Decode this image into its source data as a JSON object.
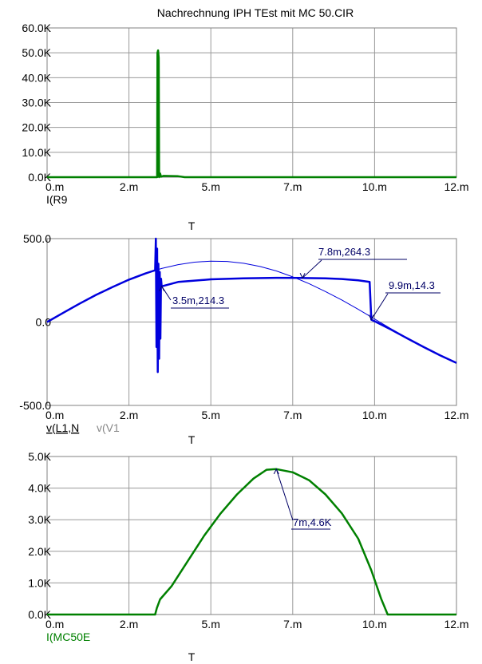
{
  "chart_data": [
    {
      "type": "line",
      "title": "Nachrechnung IPH TEst mit MC 50.CIR",
      "xlabel": "T",
      "x_ticks": [
        "0.m",
        "2.m",
        "5.m",
        "7.m",
        "10.m",
        "12.m"
      ],
      "x_tick_values": [
        0,
        2.5,
        5,
        7.5,
        10,
        12.5
      ],
      "xlim": [
        0,
        12.5
      ],
      "y_ticks": [
        "0.0K",
        "10.0K",
        "20.0K",
        "30.0K",
        "40.0K",
        "50.0K",
        "60.0K"
      ],
      "y_tick_values": [
        0,
        10000,
        20000,
        30000,
        40000,
        50000,
        60000
      ],
      "ylim": [
        0,
        60000
      ],
      "grid": true,
      "legend": [
        {
          "label": "I(R9",
          "color": "#000000",
          "underline": false
        }
      ],
      "series": [
        {
          "name": "I(R9",
          "color": "#008000",
          "points": [
            [
              0,
              0
            ],
            [
              3.3,
              0
            ],
            [
              3.36,
              0
            ],
            [
              3.37,
              50000
            ],
            [
              3.39,
              51000
            ],
            [
              3.41,
              48000
            ],
            [
              3.42,
              0
            ],
            [
              3.45,
              1500
            ],
            [
              3.48,
              200
            ],
            [
              3.55,
              500
            ],
            [
              4.0,
              400
            ],
            [
              4.2,
              0
            ],
            [
              12.5,
              0
            ]
          ]
        }
      ],
      "annotations": []
    },
    {
      "type": "line",
      "title": "",
      "xlabel": "T",
      "x_ticks": [
        "0.m",
        "2.m",
        "5.m",
        "7.m",
        "10.m",
        "12.m"
      ],
      "x_tick_values": [
        0,
        2.5,
        5,
        7.5,
        10,
        12.5
      ],
      "xlim": [
        0,
        12.5
      ],
      "y_ticks": [
        "-500.0",
        "0.0",
        "500.0"
      ],
      "y_tick_values": [
        -500,
        0,
        500
      ],
      "ylim": [
        -500,
        500
      ],
      "grid": true,
      "legend": [
        {
          "label": "v(L1,N",
          "color": "#000000",
          "underline": true
        },
        {
          "label": "v(V1",
          "color": "#888888",
          "underline": false
        }
      ],
      "series": [
        {
          "name": "v(V1",
          "color": "#0000dd",
          "width": 1,
          "points": [
            [
              0,
              0
            ],
            [
              0.5,
              56
            ],
            [
              1,
              111
            ],
            [
              1.5,
              163
            ],
            [
              2,
              210
            ],
            [
              2.5,
              254
            ],
            [
              3,
              291
            ],
            [
              3.5,
              321
            ],
            [
              4,
              344
            ],
            [
              4.5,
              359
            ],
            [
              5,
              365
            ],
            [
              5.5,
              363
            ],
            [
              6,
              352
            ],
            [
              6.5,
              333
            ],
            [
              7,
              306
            ],
            [
              7.5,
              271
            ],
            [
              8,
              230
            ],
            [
              8.5,
              183
            ],
            [
              9,
              132
            ],
            [
              9.5,
              76
            ],
            [
              10,
              18
            ],
            [
              10.5,
              -40
            ],
            [
              11,
              -96
            ],
            [
              11.5,
              -150
            ],
            [
              12,
              -199
            ],
            [
              12.5,
              -243
            ]
          ]
        },
        {
          "name": "v(L1,N",
          "color": "#0000dd",
          "width": 2.5,
          "points": [
            [
              0,
              0
            ],
            [
              0.5,
              56
            ],
            [
              1,
              111
            ],
            [
              1.5,
              163
            ],
            [
              2,
              210
            ],
            [
              2.5,
              254
            ],
            [
              3,
              291
            ],
            [
              3.2,
              304
            ],
            [
              3.3,
              310
            ],
            [
              3.32,
              500
            ],
            [
              3.34,
              -150
            ],
            [
              3.36,
              440
            ],
            [
              3.38,
              -300
            ],
            [
              3.4,
              350
            ],
            [
              3.42,
              -220
            ],
            [
              3.44,
              300
            ],
            [
              3.46,
              -100
            ],
            [
              3.48,
              260
            ],
            [
              3.5,
              214
            ],
            [
              4,
              240
            ],
            [
              5,
              256
            ],
            [
              6,
              262
            ],
            [
              7,
              265
            ],
            [
              7.8,
              264
            ],
            [
              8.5,
              262
            ],
            [
              9,
              258
            ],
            [
              9.5,
              250
            ],
            [
              9.85,
              240
            ],
            [
              9.9,
              14
            ],
            [
              10,
              5
            ],
            [
              10.5,
              -45
            ],
            [
              11,
              -98
            ],
            [
              11.5,
              -150
            ],
            [
              12,
              -200
            ],
            [
              12.5,
              -245
            ]
          ]
        }
      ],
      "annotations": [
        {
          "label": "7.8m,264.3",
          "x": 7.8,
          "y": 264.3
        },
        {
          "label": "9.9m,14.3",
          "x": 9.9,
          "y": 14.3
        },
        {
          "label": "3.5m,214.3",
          "x": 3.5,
          "y": 214.3
        }
      ]
    },
    {
      "type": "line",
      "title": "",
      "xlabel": "T",
      "x_ticks": [
        "0.m",
        "2.m",
        "5.m",
        "7.m",
        "10.m",
        "12.m"
      ],
      "x_tick_values": [
        0,
        2.5,
        5,
        7.5,
        10,
        12.5
      ],
      "xlim": [
        0,
        12.5
      ],
      "y_ticks": [
        "0.0K",
        "1.0K",
        "2.0K",
        "3.0K",
        "4.0K",
        "5.0K"
      ],
      "y_tick_values": [
        0,
        1000,
        2000,
        3000,
        4000,
        5000
      ],
      "ylim": [
        0,
        5000
      ],
      "grid": true,
      "legend": [
        {
          "label": "I(MC50E",
          "color": "#008000",
          "underline": false
        }
      ],
      "series": [
        {
          "name": "I(MC50E",
          "color": "#008000",
          "points": [
            [
              0,
              0
            ],
            [
              3.3,
              0
            ],
            [
              3.35,
              200
            ],
            [
              3.45,
              480
            ],
            [
              3.8,
              900
            ],
            [
              4.3,
              1700
            ],
            [
              4.8,
              2500
            ],
            [
              5.3,
              3200
            ],
            [
              5.8,
              3800
            ],
            [
              6.3,
              4300
            ],
            [
              6.7,
              4580
            ],
            [
              7,
              4600
            ],
            [
              7.5,
              4500
            ],
            [
              8,
              4250
            ],
            [
              8.5,
              3800
            ],
            [
              9,
              3200
            ],
            [
              9.5,
              2400
            ],
            [
              9.9,
              1400
            ],
            [
              10.2,
              500
            ],
            [
              10.4,
              0
            ],
            [
              12.5,
              0
            ]
          ]
        }
      ],
      "annotations": [
        {
          "label": "7m,4.6K",
          "x": 7,
          "y": 4600
        }
      ]
    }
  ]
}
